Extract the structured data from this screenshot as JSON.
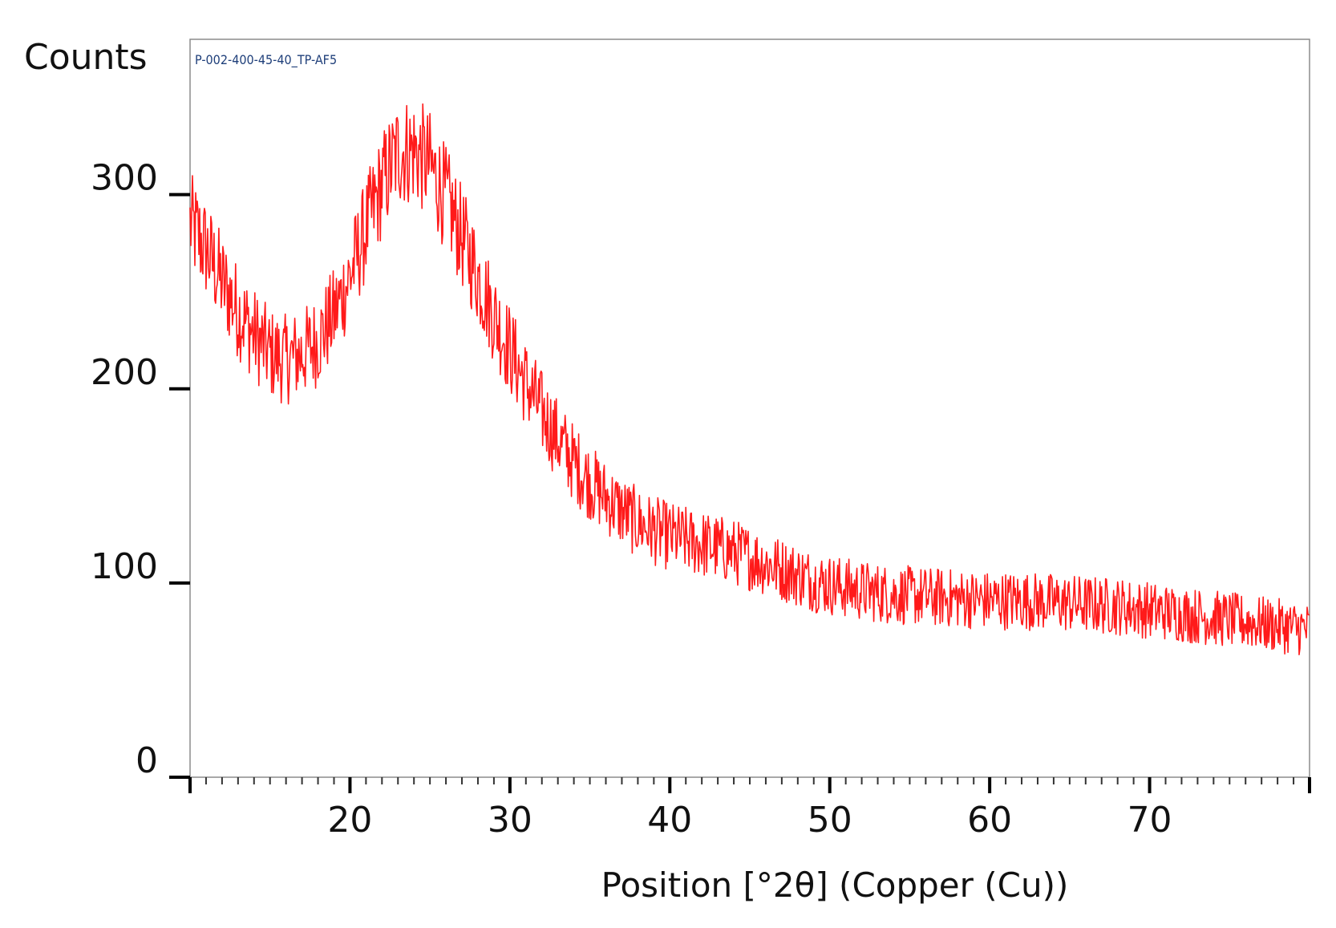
{
  "chart_data": {
    "type": "line",
    "title": "",
    "sample_label": "P-002-400-45-40_TP-AF5",
    "xlabel": "Position [°2θ] (Copper (Cu))",
    "ylabel": "Counts",
    "xlim": [
      10,
      80
    ],
    "ylim": [
      0,
      380
    ],
    "x_ticks": [
      20,
      30,
      40,
      50,
      60,
      70
    ],
    "x_tick_labels": [
      "20",
      "30",
      "40",
      "50",
      "60",
      "70"
    ],
    "y_ticks": [
      0,
      100,
      200,
      300
    ],
    "y_tick_labels": [
      "0",
      "100",
      "200",
      "300"
    ],
    "grid": false,
    "legend": "none",
    "line_color": "#ff1a1a",
    "series": [
      {
        "x": [
          10.0,
          11.0,
          12.0,
          13.0,
          14.0,
          15.0,
          16.0,
          17.0,
          18.0,
          19.0,
          20.0,
          21.0,
          22.0,
          23.0,
          24.0,
          25.0,
          26.0,
          27.0,
          28.0,
          29.0,
          30.0,
          31.0,
          32.0,
          33.0,
          34.0,
          35.0,
          36.0,
          37.0,
          38.0,
          39.0,
          40.0,
          41.0,
          42.0,
          43.0,
          44.0,
          45.0,
          46.0,
          47.0,
          48.0,
          49.0,
          50.0,
          52.0,
          54.0,
          56.0,
          58.0,
          60.0,
          62.0,
          64.0,
          66.0,
          68.0,
          70.0,
          72.0,
          74.0,
          76.0,
          78.0,
          80.0
        ],
        "values": [
          285,
          272,
          255,
          240,
          228,
          218,
          215,
          218,
          225,
          238,
          258,
          282,
          305,
          322,
          323,
          315,
          298,
          278,
          258,
          238,
          220,
          203,
          188,
          174,
          162,
          152,
          144,
          137,
          131,
          127,
          124,
          122,
          120,
          118,
          116,
          113,
          110,
          107,
          104,
          101,
          99,
          96,
          94,
          93,
          92,
          91,
          91,
          90,
          89,
          88,
          86,
          84,
          82,
          80,
          78,
          76
        ]
      }
    ]
  }
}
